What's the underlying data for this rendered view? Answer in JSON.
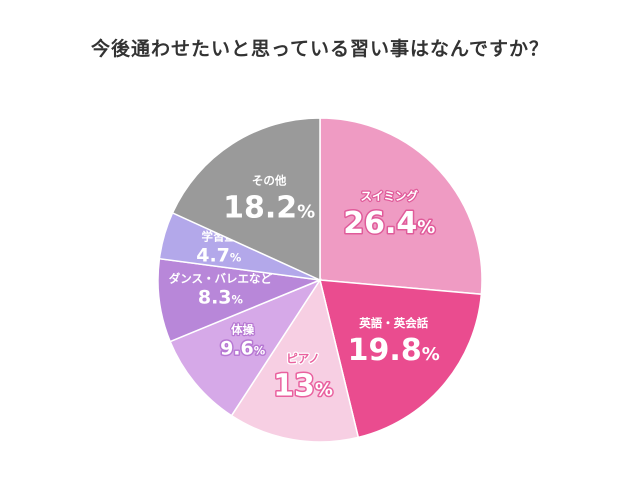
{
  "chart_data": {
    "type": "pie",
    "title": "今後通わせたいと思っている習い事はなんですか？",
    "start": "top",
    "direction": "clockwise",
    "unit": "%",
    "slices": [
      {
        "label": "スイミング",
        "value": 26.4,
        "display": "26.4",
        "color": "#ef9bc3",
        "text_color": "#ffffff",
        "outline": "#e05b9a"
      },
      {
        "label": "英語・英会話",
        "value": 19.8,
        "display": "19.8",
        "color": "#ea4c8f",
        "text_color": "#ffffff",
        "outline": "none"
      },
      {
        "label": "ピアノ",
        "value": 13,
        "display": "13",
        "color": "#f7cfe3",
        "text_color": "#ffffff",
        "outline": "#e9619f"
      },
      {
        "label": "体操",
        "value": 9.6,
        "display": "9.6",
        "color": "#d6a9e8",
        "text_color": "#ffffff",
        "outline": "#b779d3"
      },
      {
        "label": "ダンス・バレエなど",
        "value": 8.3,
        "display": "8.3",
        "color": "#b887d9",
        "text_color": "#ffffff",
        "outline": "none"
      },
      {
        "label": "学習塾",
        "value": 4.7,
        "display": "4.7",
        "color": "#b3a8ea",
        "text_color": "#ffffff",
        "outline": "none"
      },
      {
        "label": "その他",
        "value": 18.2,
        "display": "18.2",
        "color": "#9a9a9a",
        "text_color": "#ffffff",
        "outline": "none"
      }
    ]
  }
}
